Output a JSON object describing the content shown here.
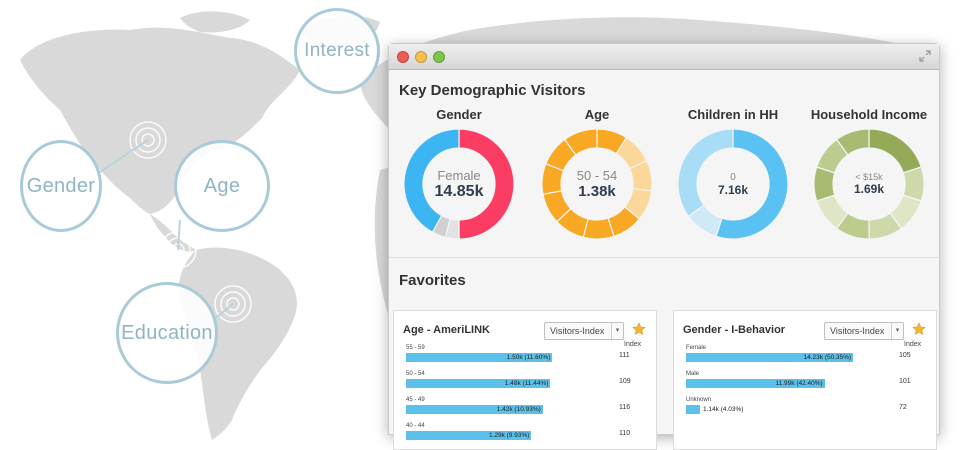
{
  "bubbles": {
    "interest": "Interest",
    "gender": "Gender",
    "age": "Age",
    "education": "Education"
  },
  "window": {
    "section_title": "Key Demographic Visitors",
    "favorites_title": "Favorites"
  },
  "colors": {
    "gender_female": "#fb3c63",
    "gender_male": "#3db5f3",
    "age_main": "#f8a823",
    "age_light": "#fbd89a",
    "children_main": "#5ac2f2",
    "children_light": "#a9dcf6",
    "income_main": "#94aa57",
    "income_light": "#cdd9aa",
    "bar": "#5bc0ea"
  },
  "donuts": [
    {
      "title": "Gender",
      "label": "Female",
      "value": "14.85k",
      "segments": [
        {
          "value": 50,
          "color": "#fb3c63"
        },
        {
          "value": 4,
          "color": "#e2e2e2"
        },
        {
          "value": 4,
          "color": "#cfcfcf"
        },
        {
          "value": 42,
          "color": "#3db5f3"
        }
      ]
    },
    {
      "title": "Age",
      "label": "50 - 54",
      "value": "1.38k",
      "segments": [
        {
          "value": 9,
          "color": "#f8a823"
        },
        {
          "value": 9,
          "color": "#fbd89a"
        },
        {
          "value": 9,
          "color": "#fbd89a"
        },
        {
          "value": 9,
          "color": "#fbd89a"
        },
        {
          "value": 9,
          "color": "#f8a823"
        },
        {
          "value": 9,
          "color": "#f8a823"
        },
        {
          "value": 9,
          "color": "#f8a823"
        },
        {
          "value": 9,
          "color": "#f8a823"
        },
        {
          "value": 9,
          "color": "#f8a823"
        },
        {
          "value": 9,
          "color": "#f8a823"
        },
        {
          "value": 10,
          "color": "#f8a823"
        }
      ]
    },
    {
      "title": "Children in HH",
      "label": "0",
      "value": "7.16k",
      "segments": [
        {
          "value": 55,
          "color": "#5ac2f2"
        },
        {
          "value": 10,
          "color": "#cfe9f7"
        },
        {
          "value": 35,
          "color": "#a9dcf6"
        }
      ]
    },
    {
      "title": "Household Income",
      "label": "< $15k",
      "value": "1.69k",
      "segments": [
        {
          "value": 20,
          "color": "#94aa57"
        },
        {
          "value": 10,
          "color": "#cdd9aa"
        },
        {
          "value": 10,
          "color": "#dfe6c6"
        },
        {
          "value": 10,
          "color": "#cdd9aa"
        },
        {
          "value": 10,
          "color": "#bccb8e"
        },
        {
          "value": 10,
          "color": "#dfe6c6"
        },
        {
          "value": 10,
          "color": "#a9bb73"
        },
        {
          "value": 10,
          "color": "#bccb8e"
        },
        {
          "value": 10,
          "color": "#a9bb73"
        }
      ]
    }
  ],
  "panels": [
    {
      "title": "Age - AmeriLINK",
      "select": "Visitors-Index",
      "index_label": "Index",
      "rows": [
        {
          "label": "55 - 59",
          "bar_text": "1.50k (11.60%)",
          "fill": 0.77,
          "index": "111"
        },
        {
          "label": "50 - 54",
          "bar_text": "1.48k (11.44%)",
          "fill": 0.76,
          "index": "109"
        },
        {
          "label": "45 - 49",
          "bar_text": "1.42k (10.93%)",
          "fill": 0.72,
          "index": "116"
        },
        {
          "label": "40 - 44",
          "bar_text": "1.29k (9.93%)",
          "fill": 0.66,
          "index": "110"
        }
      ]
    },
    {
      "title": "Gender - I-Behavior",
      "select": "Visitors-Index",
      "index_label": "Index",
      "rows": [
        {
          "label": "Female",
          "bar_text": "14.23k (50.35%)",
          "fill": 0.88,
          "index": "105"
        },
        {
          "label": "Male",
          "bar_text": "11.99k (42.40%)",
          "fill": 0.73,
          "index": "101"
        },
        {
          "label": "Unknown",
          "bar_text": "1.14k (4.03%)",
          "fill": 0.07,
          "index": "72"
        }
      ]
    }
  ]
}
